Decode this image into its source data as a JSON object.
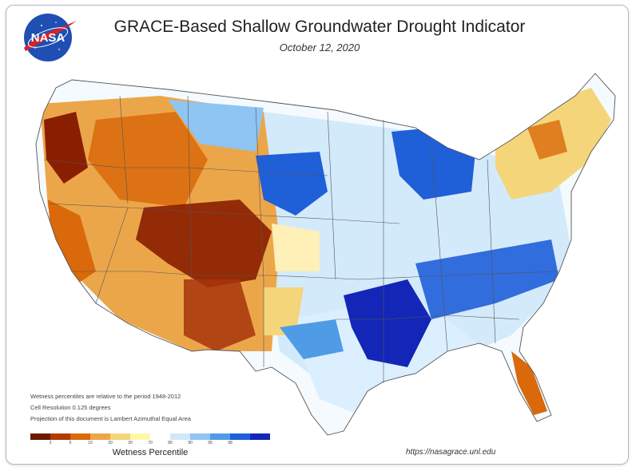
{
  "header": {
    "title": "GRACE-Based Shallow Groundwater Drought Indicator",
    "date": "October 12, 2020",
    "logo_text": "NASA"
  },
  "notes": [
    "Wetness percentiles are relative to the period 1948-2012",
    "Cell Resolution 0.125 degrees",
    "Projection of this document is Lambert Azimuthal Equal Area"
  ],
  "legend": {
    "title": "Wetness Percentile",
    "ticks": [
      "2",
      "5",
      "10",
      "20",
      "30",
      "70",
      "80",
      "90",
      "95",
      "98"
    ],
    "colors": [
      "#6b1a00",
      "#b23c00",
      "#d9690a",
      "#eca64a",
      "#f5d57a",
      "#fff7a8",
      "#ffffff",
      "#cfe8fb",
      "#8ec5f2",
      "#4f9be5",
      "#1f5fd8",
      "#1426b8"
    ]
  },
  "footer": {
    "url": "https://nasagrace.unl.edu"
  },
  "colors": {
    "wet_strong": "#1426b8",
    "wet": "#4f9be5",
    "dry": "#d9690a",
    "dry_strong": "#8a1e00",
    "boundary": "#555555"
  }
}
